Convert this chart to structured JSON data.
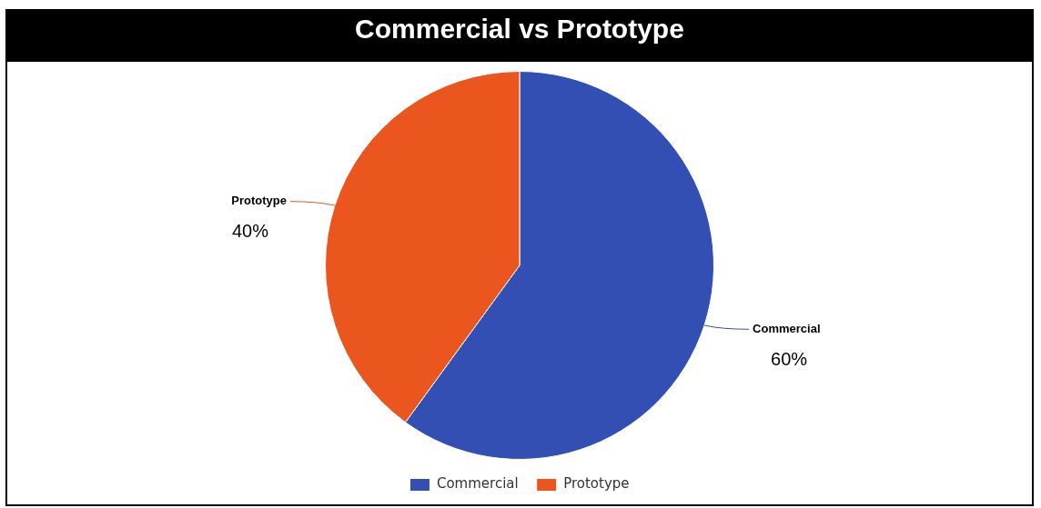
{
  "chart_data": {
    "type": "pie",
    "title": "Commercial vs Prototype",
    "categories": [
      "Commercial",
      "Prototype"
    ],
    "values": [
      60,
      40
    ],
    "colors": [
      "#344fb4",
      "#ea561e"
    ],
    "value_labels": [
      "60%",
      "40%"
    ],
    "legend": "bottom"
  }
}
